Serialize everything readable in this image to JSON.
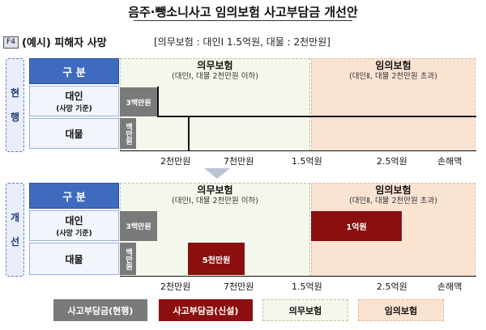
{
  "title": "음주·뺑소니사고 임의보험 사고부담금 개선안",
  "badge": "F4",
  "subtitle": "(예시) 피해자 사망",
  "subtitle_note": "[의무보험 : 대인Ⅰ  1.5억원, 대물 : 2천만원]",
  "current": {
    "side_label": [
      "현",
      "행"
    ],
    "header": "구 분",
    "mandatory_title": "의무보험",
    "mandatory_sub": "(대인Ⅰ, 대물 2천만원 이하)",
    "optional_title": "임의보험",
    "optional_sub": "(대인Ⅱ, 대물 2천만원 초과)",
    "row1_label": "대인",
    "row1_sub": "(사망 기준)",
    "row2_label": "대물",
    "gray1": "3백만원",
    "gray2": "백만원"
  },
  "improved": {
    "side_label": [
      "개",
      "선"
    ],
    "header": "구 분",
    "mandatory_title": "의무보험",
    "mandatory_sub": "(대인Ⅰ, 대물 2천만원 이하)",
    "optional_title": "임의보험",
    "optional_sub": "(대인Ⅱ, 대물 2천만원 초과)",
    "row1_label": "대인",
    "row1_sub": "(사망 기준)",
    "row2_label": "대물",
    "gray1": "3백만원",
    "gray2": "백만원",
    "red1": "1억원",
    "red2": "5천만원"
  },
  "axis": [
    "2천만원",
    "7천만원",
    "1.5억원",
    "2.5억원",
    "손해액"
  ],
  "legend": {
    "current_fee": "사고부담금(현행)",
    "new_fee": "사고부담금(신설)",
    "mandatory": "의무보험",
    "optional": "임의보험"
  },
  "colors": {
    "header_blue": "#3f6bbf",
    "gray_fee": "#7a7a7a",
    "red_fee": "#8b0f0f",
    "mandatory": "#f4f8ec",
    "optional": "#fbe3d2"
  }
}
